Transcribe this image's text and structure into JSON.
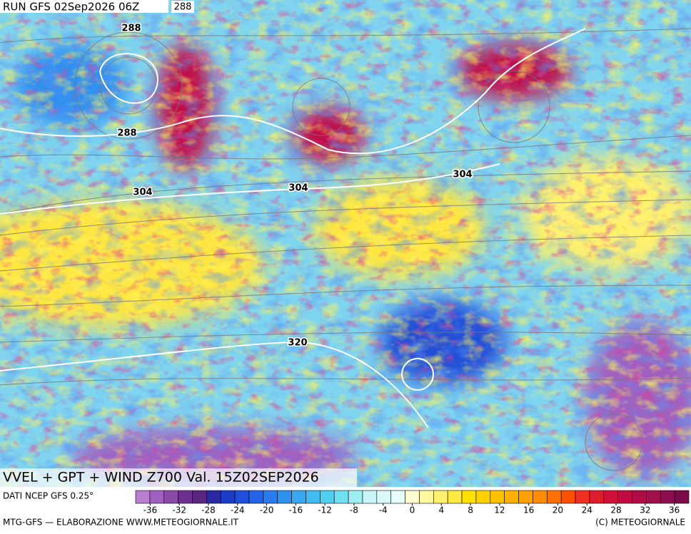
{
  "header": {
    "run": "RUN GFS 02Sep2026 06Z",
    "badge": "288"
  },
  "map": {
    "contour_labels": [
      "288",
      "288",
      "304",
      "304",
      "304",
      "320"
    ]
  },
  "title": "VVEL + GPT + WIND Z700 Val. 15Z02SEP2026",
  "source": "DATI NCEP GFS 0.25°",
  "colorbar": {
    "lim": [
      -38,
      38
    ],
    "ticks": [
      -36,
      -32,
      -28,
      -24,
      -20,
      -16,
      -12,
      -8,
      -4,
      0,
      4,
      8,
      12,
      16,
      20,
      24,
      28,
      32,
      36
    ],
    "colors": [
      "#b87fd0",
      "#a060c0",
      "#8a4aa8",
      "#6e3090",
      "#5a2880",
      "#2a2aa0",
      "#1e3cc8",
      "#1e50dc",
      "#2464e8",
      "#2a7af0",
      "#3090f0",
      "#38a8f0",
      "#40bcf0",
      "#50d0f0",
      "#70e0f0",
      "#a0eef4",
      "#c8f6f8",
      "#d8f8fa",
      "#e8fcfc",
      "#fffcd0",
      "#fff8a0",
      "#fff070",
      "#ffe840",
      "#ffe000",
      "#ffd000",
      "#ffc000",
      "#ffb000",
      "#ffa000",
      "#ff8c00",
      "#ff7000",
      "#ff5000",
      "#f03020",
      "#e01c2c",
      "#d01038",
      "#c00c40",
      "#b00c48",
      "#a0104c",
      "#8c1050",
      "#7a0c48"
    ]
  },
  "footer": {
    "left": "MTG-GFS — ELABORAZIONE WWW.METEOGIORNALE.IT",
    "right": "(C) METEOGIORNALE"
  }
}
